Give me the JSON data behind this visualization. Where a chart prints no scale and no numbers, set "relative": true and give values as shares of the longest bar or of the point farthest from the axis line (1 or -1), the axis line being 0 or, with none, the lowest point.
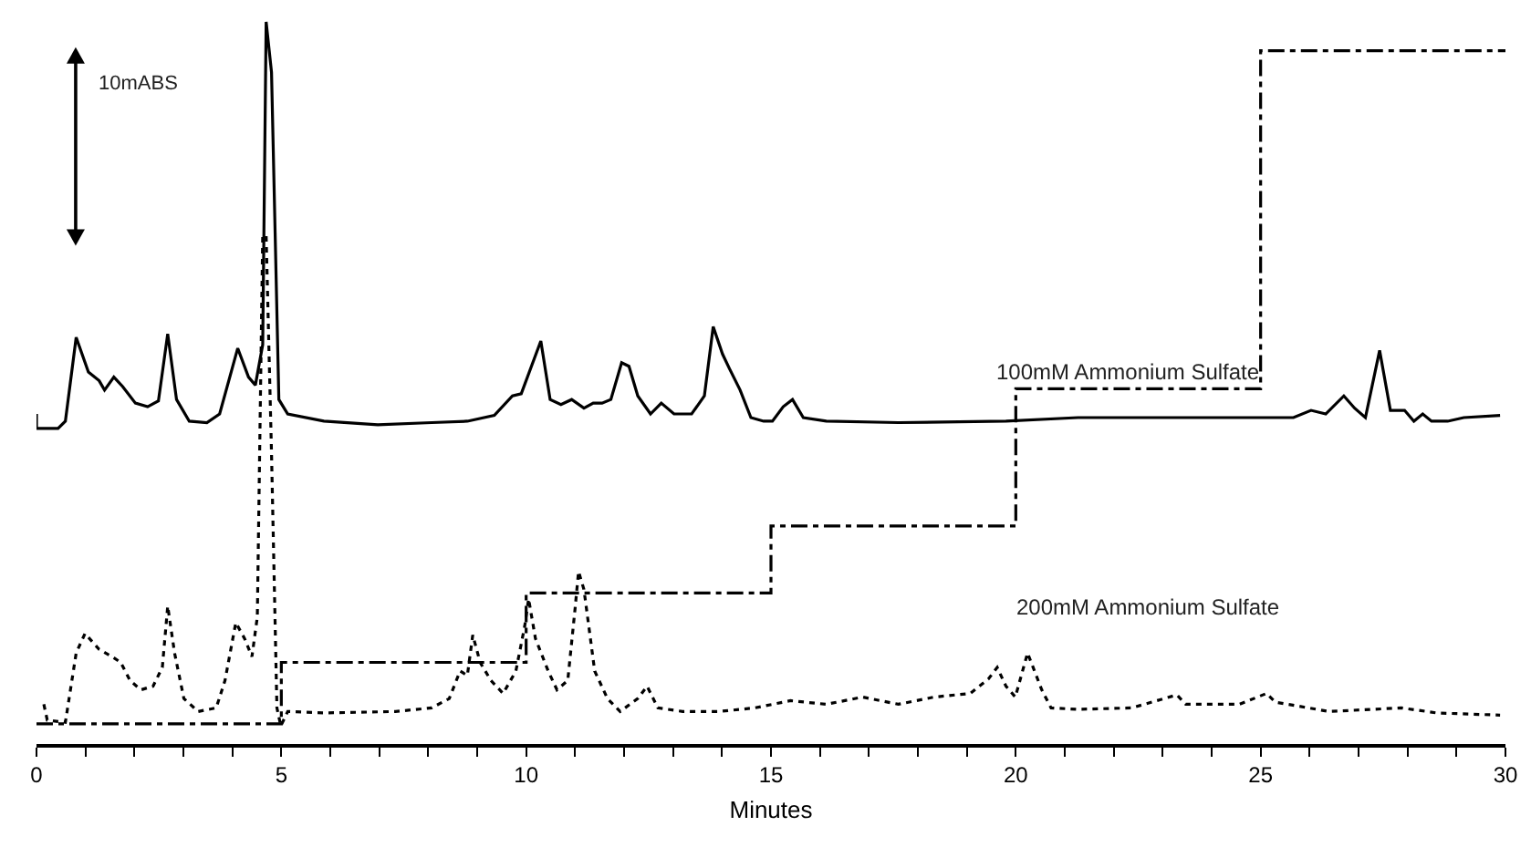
{
  "chart_data": {
    "type": "line",
    "relative": true,
    "xlabel": "Minutes",
    "xlim": [
      0,
      30
    ],
    "xticks": [
      0,
      {
        "value": 1,
        "label": null
      },
      {
        "value": 2,
        "label": null
      },
      {
        "value": 3,
        "label": null
      },
      {
        "value": 4,
        "label": null
      },
      5,
      {
        "value": 6,
        "label": null
      },
      {
        "value": 7,
        "label": null
      },
      {
        "value": 8,
        "label": null
      },
      {
        "value": 9,
        "label": null
      },
      10,
      {
        "value": 11,
        "label": null
      },
      {
        "value": 12,
        "label": null
      },
      {
        "value": 13,
        "label": null
      },
      {
        "value": 14,
        "label": null
      },
      15,
      {
        "value": 16,
        "label": null
      },
      {
        "value": 17,
        "label": null
      },
      {
        "value": 18,
        "label": null
      },
      {
        "value": 19,
        "label": null
      },
      20,
      {
        "value": 21,
        "label": null
      },
      {
        "value": 22,
        "label": null
      },
      {
        "value": 23,
        "label": null
      },
      {
        "value": 24,
        "label": null
      },
      25,
      {
        "value": 26,
        "label": null
      },
      {
        "value": 27,
        "label": null
      },
      {
        "value": 28,
        "label": null
      },
      {
        "value": 29,
        "label": null
      },
      30
    ],
    "grid": false,
    "legend": false,
    "marker": "none",
    "annotations": [
      "10mABS"
    ],
    "series": [
      {
        "name": "100mM Ammonium Sulfate",
        "color": "#000000",
        "line_style": "solid",
        "x": [
          0,
          0,
          0.44,
          0.59,
          0.81,
          1.06,
          1.28,
          1.39,
          1.58,
          1.76,
          2.02,
          2.27,
          2.49,
          2.68,
          2.86,
          3.12,
          3.48,
          3.74,
          4.11,
          4.33,
          4.47,
          4.62,
          4.69,
          4.8,
          4.95,
          5.13,
          5.87,
          6.97,
          8.07,
          8.8,
          9.35,
          9.72,
          9.9,
          10.3,
          10.49,
          10.71,
          10.93,
          11.18,
          11.37,
          11.55,
          11.73,
          11.95,
          12.1,
          12.28,
          12.54,
          12.76,
          13.02,
          13.38,
          13.64,
          13.82,
          14.01,
          14.15,
          14.37,
          14.59,
          14.85,
          15.03,
          15.25,
          15.44,
          15.66,
          16.13,
          17.6,
          19.8,
          21.27,
          22.74,
          24.2,
          25.67,
          26.03,
          26.33,
          26.7,
          26.92,
          27.14,
          27.43,
          27.65,
          27.94,
          28.13,
          28.31,
          28.49,
          28.82,
          29.15,
          29.89
        ],
        "values": [
          0.457,
          0.437,
          0.437,
          0.447,
          0.563,
          0.515,
          0.503,
          0.49,
          0.508,
          0.495,
          0.472,
          0.467,
          0.475,
          0.568,
          0.477,
          0.447,
          0.445,
          0.457,
          0.548,
          0.508,
          0.497,
          0.553,
          1.0,
          0.93,
          0.477,
          0.457,
          0.447,
          0.442,
          0.445,
          0.447,
          0.455,
          0.482,
          0.485,
          0.558,
          0.477,
          0.47,
          0.477,
          0.465,
          0.472,
          0.472,
          0.477,
          0.528,
          0.523,
          0.482,
          0.457,
          0.472,
          0.457,
          0.457,
          0.482,
          0.578,
          0.54,
          0.52,
          0.49,
          0.452,
          0.447,
          0.447,
          0.467,
          0.477,
          0.452,
          0.447,
          0.445,
          0.447,
          0.452,
          0.452,
          0.452,
          0.452,
          0.462,
          0.457,
          0.482,
          0.465,
          0.452,
          0.545,
          0.462,
          0.462,
          0.447,
          0.457,
          0.447,
          0.447,
          0.452,
          0.455
        ]
      },
      {
        "name": "200mM Ammonium Sulfate",
        "color": "#000000",
        "line_style": "dotted",
        "x": [
          0.15,
          0.22,
          0.59,
          0.81,
          0.99,
          1.28,
          1.54,
          1.72,
          1.91,
          2.13,
          2.38,
          2.57,
          2.68,
          2.82,
          3.01,
          3.3,
          3.67,
          3.85,
          4.07,
          4.25,
          4.4,
          4.51,
          4.62,
          4.69,
          4.8,
          4.91,
          4.99,
          5.13,
          5.87,
          7.33,
          8.07,
          8.43,
          8.65,
          8.8,
          8.91,
          9.06,
          9.28,
          9.53,
          9.79,
          9.97,
          10.05,
          10.19,
          10.45,
          10.63,
          10.85,
          11.0,
          11.07,
          11.18,
          11.4,
          11.66,
          11.92,
          12.28,
          12.47,
          12.69,
          13.2,
          13.93,
          14.67,
          15.4,
          16.13,
          16.87,
          17.6,
          18.33,
          19.07,
          19.44,
          19.62,
          19.8,
          19.99,
          20.24,
          20.53,
          20.72,
          21.27,
          22.37,
          23.29,
          23.47,
          24.57,
          25.12,
          25.3,
          26.4,
          27.87,
          28.6,
          29.89
        ],
        "values": [
          0.055,
          0.033,
          0.03,
          0.126,
          0.153,
          0.131,
          0.121,
          0.113,
          0.088,
          0.075,
          0.08,
          0.106,
          0.191,
          0.126,
          0.063,
          0.045,
          0.05,
          0.088,
          0.168,
          0.146,
          0.121,
          0.176,
          0.704,
          0.704,
          0.402,
          0.05,
          0.025,
          0.045,
          0.043,
          0.045,
          0.05,
          0.063,
          0.101,
          0.095,
          0.151,
          0.113,
          0.088,
          0.07,
          0.101,
          0.163,
          0.201,
          0.146,
          0.101,
          0.075,
          0.088,
          0.188,
          0.239,
          0.214,
          0.101,
          0.063,
          0.045,
          0.063,
          0.08,
          0.05,
          0.045,
          0.045,
          0.05,
          0.06,
          0.055,
          0.065,
          0.055,
          0.065,
          0.07,
          0.09,
          0.106,
          0.08,
          0.065,
          0.126,
          0.075,
          0.05,
          0.048,
          0.05,
          0.068,
          0.055,
          0.055,
          0.07,
          0.058,
          0.045,
          0.05,
          0.043,
          0.04
        ]
      },
      {
        "type": "step",
        "color": "#000000",
        "line_style": "dashdot",
        "x": [
          0,
          5,
          10,
          15,
          20,
          25,
          30
        ],
        "values": [
          0.028,
          0.113,
          0.209,
          0.302,
          0.492,
          0.96,
          0.96
        ]
      }
    ]
  }
}
